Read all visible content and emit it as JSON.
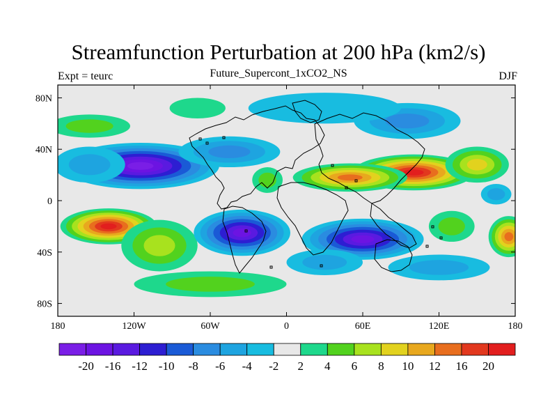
{
  "title": "Streamfunction Perturbation at 200 hPa (km2/s)",
  "subtitle": "Future_Supercont_1xCO2_NS",
  "left_string": "Expt = teurc",
  "right_string": "DJF",
  "map": {
    "projection": "cylindrical equidistant",
    "lon_range": [
      -180,
      180
    ],
    "lat_range": [
      -90,
      90
    ],
    "background_color": "#e8e8e8",
    "coastline_color": "#000000"
  },
  "lon_ticks": [
    {
      "value": -180,
      "label": "180"
    },
    {
      "value": -120,
      "label": "120W"
    },
    {
      "value": -60,
      "label": "60W"
    },
    {
      "value": 0,
      "label": "0"
    },
    {
      "value": 60,
      "label": "60E"
    },
    {
      "value": 120,
      "label": "120E"
    },
    {
      "value": 180,
      "label": "180"
    }
  ],
  "lat_ticks": [
    {
      "value": 80,
      "label": "80N"
    },
    {
      "value": 40,
      "label": "40N"
    },
    {
      "value": 0,
      "label": "0"
    },
    {
      "value": -40,
      "label": "40S"
    },
    {
      "value": -80,
      "label": "80S"
    }
  ],
  "colorbar": {
    "colors": [
      "#7a1ee6",
      "#6c14e2",
      "#5a1ae0",
      "#2d1ed2",
      "#1a5ad6",
      "#2a8ce0",
      "#1ea4e0",
      "#18bce0",
      "#e8e8e8",
      "#1ed88c",
      "#52d21e",
      "#a8e21e",
      "#e2d21e",
      "#e8a81e",
      "#e86e1e",
      "#e2381e",
      "#e21e1e"
    ],
    "labels": [
      "-20",
      "-16",
      "-12",
      "-10",
      "-8",
      "-6",
      "-4",
      "-2",
      "2",
      "4",
      "6",
      "8",
      "10",
      "12",
      "16",
      "20"
    ]
  },
  "chart_data": {
    "type": "heatmap",
    "title": "Streamfunction Perturbation at 200 hPa (km2/s)",
    "subtitle": "Future_Supercont_1xCO2_NS",
    "variable": "streamfunction perturbation",
    "units": "km2/s",
    "level": "200 hPa",
    "season": "DJF",
    "experiment": "teurc",
    "contour_levels": [
      -20,
      -16,
      -12,
      -10,
      -8,
      -6,
      -4,
      -2,
      2,
      4,
      6,
      8,
      10,
      12,
      16,
      20
    ],
    "features": [
      {
        "lon": -115,
        "lat": 27,
        "value": -22,
        "r_lon": 62,
        "r_lat": 18
      },
      {
        "lon": -155,
        "lat": 28,
        "value": -5,
        "r_lon": 28,
        "r_lat": 14
      },
      {
        "lon": -45,
        "lat": 38,
        "value": -6,
        "r_lon": 40,
        "r_lat": 12
      },
      {
        "lon": 100,
        "lat": 22,
        "value": 20,
        "r_lon": 48,
        "r_lat": 14
      },
      {
        "lon": 50,
        "lat": 18,
        "value": 13,
        "r_lon": 45,
        "r_lat": 11
      },
      {
        "lon": 150,
        "lat": 28,
        "value": 8,
        "r_lon": 25,
        "r_lat": 14
      },
      {
        "lon": 95,
        "lat": 62,
        "value": -7,
        "r_lon": 42,
        "r_lat": 14
      },
      {
        "lon": 30,
        "lat": 72,
        "value": -3,
        "r_lon": 60,
        "r_lat": 12
      },
      {
        "lon": -155,
        "lat": 58,
        "value": 5,
        "r_lon": 32,
        "r_lat": 9
      },
      {
        "lon": -70,
        "lat": 72,
        "value": 3,
        "r_lon": 22,
        "r_lat": 8
      },
      {
        "lon": -15,
        "lat": 16,
        "value": 5,
        "r_lon": 12,
        "r_lat": 10
      },
      {
        "lon": -140,
        "lat": -20,
        "value": 20,
        "r_lon": 38,
        "r_lat": 14
      },
      {
        "lon": -100,
        "lat": -35,
        "value": 6,
        "r_lon": 30,
        "r_lat": 20
      },
      {
        "lon": -35,
        "lat": -25,
        "value": -18,
        "r_lon": 38,
        "r_lat": 18
      },
      {
        "lon": 60,
        "lat": -30,
        "value": -19,
        "r_lon": 48,
        "r_lat": 16
      },
      {
        "lon": 30,
        "lat": -48,
        "value": -4,
        "r_lon": 30,
        "r_lat": 10
      },
      {
        "lon": 130,
        "lat": -20,
        "value": 4,
        "r_lon": 18,
        "r_lat": 12
      },
      {
        "lon": 175,
        "lat": -28,
        "value": 14,
        "r_lon": 16,
        "r_lat": 16
      },
      {
        "lon": -60,
        "lat": -65,
        "value": 5,
        "r_lon": 60,
        "r_lat": 10
      },
      {
        "lon": 120,
        "lat": -52,
        "value": -5,
        "r_lon": 40,
        "r_lat": 10
      },
      {
        "lon": 165,
        "lat": 5,
        "value": -4,
        "r_lon": 12,
        "r_lat": 8
      }
    ]
  }
}
